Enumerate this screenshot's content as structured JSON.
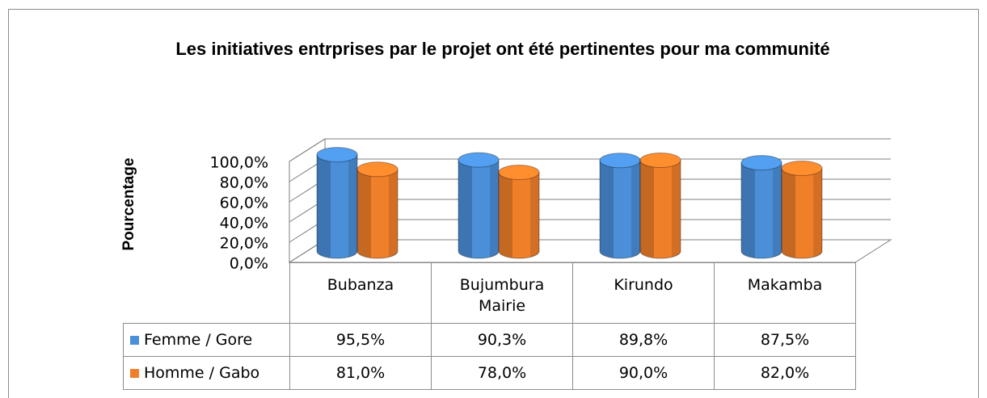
{
  "chart_data": {
    "type": "bar3d",
    "title": "Les initiatives entrprises par le projet ont été pertinentes pour ma communité",
    "y_label": "Pourcentage",
    "categories": [
      "Bubanza",
      "Bujumbura Mairie",
      "Kirundo",
      "Makamba"
    ],
    "series": [
      {
        "name": "Femme / Gore",
        "color": "#4a8fd8",
        "values": [
          95.5,
          90.3,
          89.8,
          87.5
        ],
        "value_labels": [
          "95,5%",
          "90,3%",
          "89,8%",
          "87,5%"
        ]
      },
      {
        "name": "Homme / Gabo",
        "color": "#f07f2a",
        "values": [
          81.0,
          78.0,
          90.0,
          82.0
        ],
        "value_labels": [
          "81,0%",
          "78,0%",
          "90,0%",
          "82,0%"
        ]
      }
    ],
    "ylim": [
      0,
      100
    ],
    "yticks": [
      {
        "value": 0,
        "label": "0,0%"
      },
      {
        "value": 20,
        "label": "20,0%"
      },
      {
        "value": 40,
        "label": "40,0%"
      },
      {
        "value": 60,
        "label": "60,0%"
      },
      {
        "value": 80,
        "label": "80,0%"
      },
      {
        "value": 100,
        "label": "100,0%"
      }
    ],
    "grid": true
  }
}
